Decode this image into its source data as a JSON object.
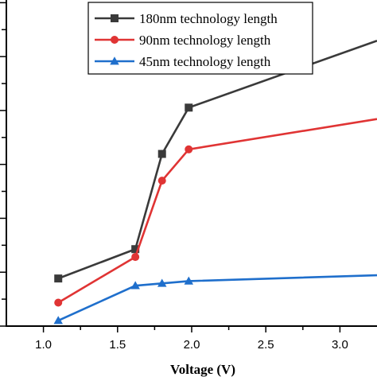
{
  "chart_data": {
    "type": "line",
    "title": "",
    "xlabel": "Voltage (V)",
    "ylabel": "",
    "xlim": [
      0.75,
      3.25
    ],
    "ylim": [
      0,
      1
    ],
    "x_ticks": [
      "1.0",
      "1.5",
      "2.0",
      "2.5",
      "3.0"
    ],
    "x_tick_values": [
      1.0,
      1.5,
      2.0,
      2.5,
      3.0
    ],
    "y_tick_count": 12,
    "grid": false,
    "legend_position": "top-center",
    "series": [
      {
        "name": "180nm technology length",
        "color": "#3a3a3a",
        "marker": "square",
        "x": [
          1.1,
          1.62,
          1.8,
          1.98,
          3.25
        ],
        "y": [
          0.146,
          0.236,
          0.528,
          0.67,
          0.875
        ]
      },
      {
        "name": "90nm technology length",
        "color": "#e03434",
        "marker": "circle",
        "x": [
          1.1,
          1.62,
          1.8,
          1.98,
          3.25
        ],
        "y": [
          0.072,
          0.212,
          0.446,
          0.542,
          0.635
        ]
      },
      {
        "name": "45nm technology length",
        "color": "#1f6fcc",
        "marker": "triangle",
        "x": [
          1.1,
          1.62,
          1.8,
          1.98,
          3.25
        ],
        "y": [
          0.017,
          0.124,
          0.131,
          0.138,
          0.156
        ]
      }
    ]
  }
}
